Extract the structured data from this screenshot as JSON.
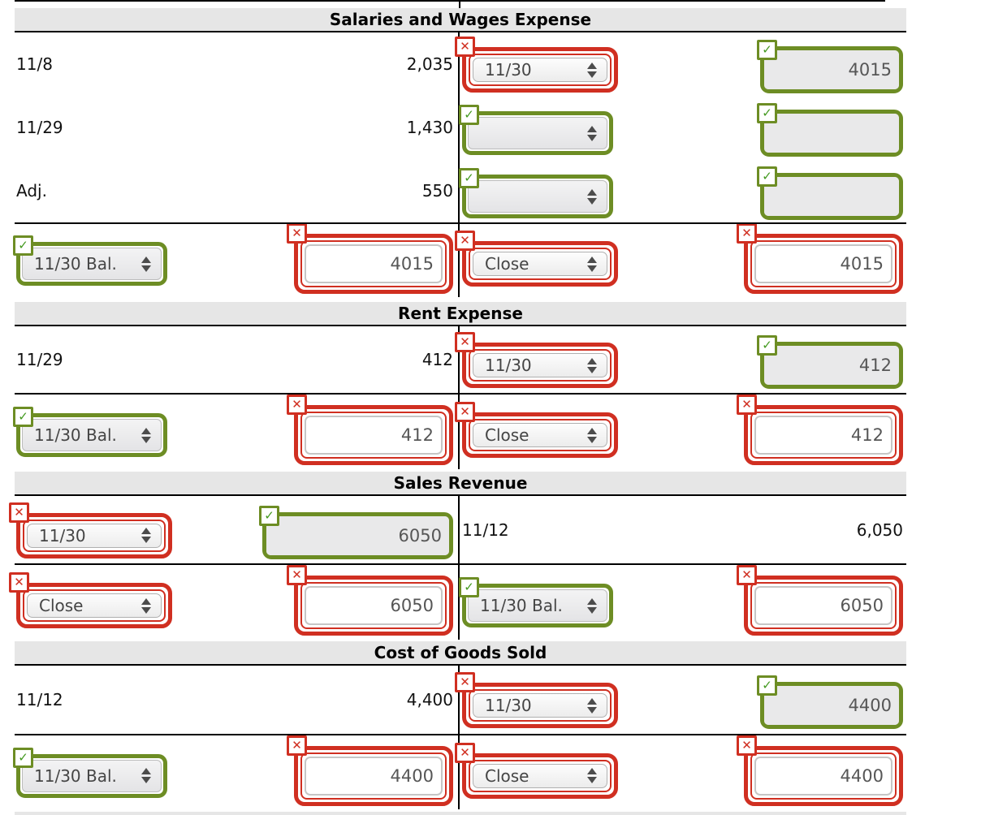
{
  "colors": {
    "wrong_accent": "#d02f21",
    "correct_accent": "#6d8d24",
    "header_band_bg": "#e6e6e6"
  },
  "icons": {
    "wrong": "✕",
    "correct": "✓"
  },
  "accounts": [
    {
      "title": "Salaries and Wages Expense",
      "rows": [
        {
          "type": "entry",
          "left": {
            "label": "11/8",
            "amount": "2,035"
          },
          "right": {
            "controls": [
              {
                "kind": "select",
                "status": "wrong",
                "value": "11/30",
                "name": "posting-date-select"
              },
              {
                "kind": "input",
                "status": "correct",
                "value": "4015",
                "name": "credit-amount-input"
              }
            ]
          }
        },
        {
          "type": "entry",
          "left": {
            "label": "11/29",
            "amount": "1,430"
          },
          "right": {
            "controls": [
              {
                "kind": "select",
                "status": "correct",
                "value": "",
                "name": "posting-date-select"
              },
              {
                "kind": "input",
                "status": "correct",
                "value": "",
                "name": "credit-amount-input"
              }
            ]
          }
        },
        {
          "type": "entry",
          "left": {
            "label": "Adj.",
            "amount": "550"
          },
          "right": {
            "controls": [
              {
                "kind": "select",
                "status": "correct",
                "value": "",
                "name": "posting-date-select"
              },
              {
                "kind": "input",
                "status": "correct",
                "value": "",
                "name": "credit-amount-input"
              }
            ]
          }
        },
        {
          "type": "balance",
          "left": {
            "controls": [
              {
                "kind": "select",
                "status": "correct",
                "value": "11/30 Bal.",
                "name": "balance-date-select"
              },
              {
                "kind": "input",
                "status": "wrong",
                "value": "4015",
                "name": "debit-balance-input"
              }
            ]
          },
          "right": {
            "controls": [
              {
                "kind": "select",
                "status": "wrong",
                "value": "Close",
                "name": "closing-entry-select"
              },
              {
                "kind": "input",
                "status": "wrong",
                "value": "4015",
                "name": "credit-closing-amount-input"
              }
            ]
          }
        }
      ]
    },
    {
      "title": "Rent Expense",
      "rows": [
        {
          "type": "entry",
          "left": {
            "label": "11/29",
            "amount": "412"
          },
          "right": {
            "controls": [
              {
                "kind": "select",
                "status": "wrong",
                "value": "11/30",
                "name": "posting-date-select"
              },
              {
                "kind": "input",
                "status": "correct",
                "value": "412",
                "name": "credit-amount-input"
              }
            ]
          }
        },
        {
          "type": "balance",
          "left": {
            "controls": [
              {
                "kind": "select",
                "status": "correct",
                "value": "11/30 Bal.",
                "name": "balance-date-select"
              },
              {
                "kind": "input",
                "status": "wrong",
                "value": "412",
                "name": "debit-balance-input"
              }
            ]
          },
          "right": {
            "controls": [
              {
                "kind": "select",
                "status": "wrong",
                "value": "Close",
                "name": "closing-entry-select"
              },
              {
                "kind": "input",
                "status": "wrong",
                "value": "412",
                "name": "credit-closing-amount-input"
              }
            ]
          }
        }
      ]
    },
    {
      "title": "Sales Revenue",
      "rows": [
        {
          "type": "entry",
          "left": {
            "controls": [
              {
                "kind": "select",
                "status": "wrong",
                "value": "11/30",
                "name": "posting-date-select"
              },
              {
                "kind": "input",
                "status": "correct",
                "value": "6050",
                "wide": true,
                "name": "debit-amount-input"
              }
            ]
          },
          "right": {
            "label": "11/12",
            "amount": "6,050"
          }
        },
        {
          "type": "balance",
          "left": {
            "controls": [
              {
                "kind": "select",
                "status": "wrong",
                "value": "Close",
                "name": "closing-entry-select"
              },
              {
                "kind": "input",
                "status": "wrong",
                "value": "6050",
                "name": "debit-closing-amount-input"
              }
            ]
          },
          "right": {
            "controls": [
              {
                "kind": "select",
                "status": "correct",
                "value": "11/30 Bal.",
                "name": "balance-date-select"
              },
              {
                "kind": "input",
                "status": "wrong",
                "value": "6050",
                "name": "credit-balance-input"
              }
            ]
          }
        }
      ]
    },
    {
      "title": "Cost of Goods Sold",
      "rows": [
        {
          "type": "entry",
          "left": {
            "label": "11/12",
            "amount": "4,400"
          },
          "right": {
            "controls": [
              {
                "kind": "select",
                "status": "wrong",
                "value": "11/30",
                "name": "posting-date-select"
              },
              {
                "kind": "input",
                "status": "correct",
                "value": "4400",
                "name": "credit-amount-input"
              }
            ]
          }
        },
        {
          "type": "balance",
          "left": {
            "controls": [
              {
                "kind": "select",
                "status": "correct",
                "value": "11/30 Bal.",
                "name": "balance-date-select"
              },
              {
                "kind": "input",
                "status": "wrong",
                "value": "4400",
                "name": "debit-balance-input"
              }
            ]
          },
          "right": {
            "controls": [
              {
                "kind": "select",
                "status": "wrong",
                "value": "Close",
                "name": "closing-entry-select"
              },
              {
                "kind": "input",
                "status": "wrong",
                "value": "4400",
                "name": "credit-closing-amount-input"
              }
            ]
          }
        }
      ]
    }
  ]
}
